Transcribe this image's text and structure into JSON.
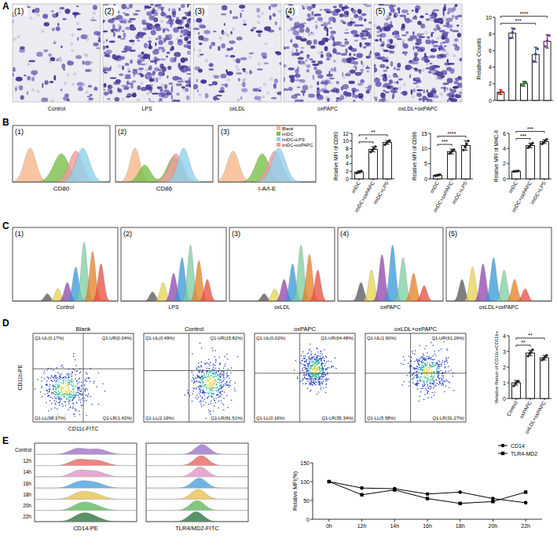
{
  "figure": {
    "panels": [
      {
        "letter": "A",
        "images": [
          {
            "index": "(1)",
            "caption": "Control"
          },
          {
            "index": "(2)",
            "caption": "LPS"
          },
          {
            "index": "(3)",
            "caption": "oxLDL"
          },
          {
            "index": "(4)",
            "caption": "oxPAPC"
          },
          {
            "index": "(5)",
            "caption": "oxLDL+oxPAPC"
          }
        ]
      },
      {
        "letter": "B",
        "histograms": [
          {
            "index": "(1)",
            "x_label": "CD80"
          },
          {
            "index": "(2)",
            "x_label": "CD86"
          },
          {
            "index": "(3)",
            "x_label": "I-A/I-E"
          }
        ],
        "legend": [
          {
            "name": "Blank",
            "color": "#f6b98a"
          },
          {
            "name": "imDC",
            "color": "#7cc04a"
          },
          {
            "name": "imDC+LPS",
            "color": "#8fd3ee"
          },
          {
            "name": "imDC+oxPAPC",
            "color": "#f29b9b"
          }
        ]
      },
      {
        "letter": "C",
        "histograms": [
          {
            "index": "(1)",
            "caption": "Control"
          },
          {
            "index": "(2)",
            "caption": "LPS"
          },
          {
            "index": "(3)",
            "caption": "oxLDL"
          },
          {
            "index": "(4)",
            "caption": "oxPAPC"
          },
          {
            "index": "(5)",
            "caption": "oxLDL+oxPAPC"
          }
        ]
      },
      {
        "letter": "D",
        "x_label": "CD11c-FITC",
        "y_label": "CD11b-PE",
        "plots": [
          {
            "title": "Blank",
            "quadrants": {
              "UL": "Q1-UL(0.17%)",
              "UR": "Q1-UR(0.04%)",
              "LL": "Q1-LL(98.37%)",
              "LR": "Q1-LR(1.42%)"
            }
          },
          {
            "title": "Control",
            "quadrants": {
              "UL": "Q1-UL(0.49%)",
              "UR": "Q1-UR(15.82%)",
              "LL": "Q1-LL(2.19%)",
              "LR": "Q1-LR(81.51%)"
            }
          },
          {
            "title": "oxPAPC",
            "quadrants": {
              "UL": "Q1-UL(0.02%)",
              "UR": "Q1-UR(64.48%)",
              "LL": "Q1-LL(0.16%)",
              "LR": "Q1-LR(35.34%)"
            }
          },
          {
            "title": "oxLDL+oxPAPC",
            "quadrants": {
              "UL": "Q1-UL(1.90%)",
              "UR": "Q1-UR(61.26%)",
              "LL": "Q1-LL(5.58%)",
              "LR": "Q1-LR(31.27%)"
            }
          }
        ]
      },
      {
        "letter": "E",
        "rows": [
          "Control",
          "12h",
          "14h",
          "16h",
          "18h",
          "20h",
          "22h"
        ],
        "histograms": [
          "CD14-PE",
          "TLR4/MD2-FITC"
        ]
      }
    ]
  },
  "chart_data": [
    {
      "type": "bar",
      "ylabel": "Relative Counts",
      "categories": [
        null,
        null,
        null,
        null,
        null
      ],
      "values": [
        1.0,
        8.1,
        2.0,
        5.5,
        7.1
      ],
      "errors": [
        0.3,
        0.6,
        0.3,
        0.9,
        0.8
      ],
      "points": [
        [
          0.8,
          1.2,
          1.0
        ],
        [
          7.5,
          8.2,
          8.6
        ],
        [
          1.8,
          2.1,
          2.2
        ],
        [
          4.7,
          5.6,
          6.2
        ],
        [
          6.5,
          7.2,
          7.8
        ]
      ],
      "colors": [
        "#e53935",
        "#5a3d8a",
        "#2e7d32",
        "#3949ab",
        "#8e24aa"
      ],
      "ylim": [
        0,
        10
      ],
      "yticks": [
        0,
        2,
        4,
        6,
        8,
        10
      ],
      "tick_labels": "y",
      "annotations": [
        {
          "text": "***",
          "between": [
            0,
            3
          ]
        },
        {
          "text": "****",
          "between": [
            0,
            4
          ]
        }
      ]
    },
    {
      "type": "bar",
      "ylabel": "Relative MFI of CD80",
      "categories": [
        "imDC",
        "imDC+oxPAPC",
        "imDC+LPS"
      ],
      "values": [
        1.8,
        7.8,
        9.6
      ],
      "errors": [
        0.3,
        0.7,
        0.5
      ],
      "points": [
        [
          1.5,
          1.7,
          1.9,
          2.1
        ],
        [
          7.1,
          7.6,
          8.0,
          8.5
        ],
        [
          9.0,
          9.5,
          9.8,
          10.1
        ]
      ],
      "color": "#222222",
      "ylim": [
        0,
        12
      ],
      "yticks": [
        0,
        2,
        4,
        6,
        8,
        10,
        12
      ],
      "annotations": [
        {
          "text": "*",
          "between": [
            0,
            1
          ]
        },
        {
          "text": "**",
          "between": [
            0,
            2
          ]
        }
      ]
    },
    {
      "type": "bar",
      "ylabel": "Relative MFI of CD86",
      "categories": [
        "imDC",
        "imDC+oxPAPC",
        "imDC+LPS"
      ],
      "values": [
        1.2,
        9.0,
        11.0
      ],
      "errors": [
        0.2,
        0.8,
        1.5
      ],
      "points": [
        [
          1.0,
          1.1,
          1.3,
          1.4
        ],
        [
          8.3,
          8.8,
          9.3,
          9.6
        ],
        [
          9.5,
          10.5,
          11.5,
          12.5
        ]
      ],
      "color": "#222222",
      "ylim": [
        0,
        15
      ],
      "yticks": [
        0,
        5,
        10,
        15
      ],
      "annotations": [
        {
          "text": "***",
          "between": [
            0,
            1
          ]
        },
        {
          "text": "****",
          "between": [
            0,
            2
          ]
        }
      ]
    },
    {
      "type": "bar",
      "ylabel": "Relative MFI of MHC-II",
      "categories": [
        "imDC",
        "imDC+oxPAPC",
        "imDC+LPS"
      ],
      "values": [
        1.0,
        4.4,
        4.9
      ],
      "errors": [
        0.05,
        0.3,
        0.25
      ],
      "points": [
        [
          0.95,
          1.0,
          1.02,
          1.05
        ],
        [
          4.1,
          4.3,
          4.5,
          4.7
        ],
        [
          4.6,
          4.8,
          5.0,
          5.2
        ]
      ],
      "color": "#222222",
      "ylim": [
        0,
        6
      ],
      "yticks": [
        0,
        2,
        4,
        6
      ],
      "annotations": [
        {
          "text": "***",
          "between": [
            0,
            1
          ]
        },
        {
          "text": "***",
          "between": [
            0,
            2
          ]
        }
      ]
    },
    {
      "type": "bar",
      "ylabel": "Relative Ration of CD11c+CD11b+",
      "categories": [
        "Control",
        "oxPAPC",
        "oxLDL+oxPAPC"
      ],
      "values": [
        1.0,
        2.9,
        2.6
      ],
      "errors": [
        0.15,
        0.18,
        0.15
      ],
      "points": [
        [
          0.8,
          0.95,
          1.05,
          1.1
        ],
        [
          2.7,
          2.85,
          2.95,
          3.1
        ],
        [
          2.45,
          2.55,
          2.65,
          2.75
        ]
      ],
      "color": "#222222",
      "ylim": [
        0,
        4
      ],
      "yticks": [
        0,
        1,
        2,
        3,
        4
      ],
      "annotations": [
        {
          "text": "**",
          "between": [
            0,
            1
          ]
        },
        {
          "text": "**",
          "between": [
            0,
            2
          ]
        }
      ]
    },
    {
      "type": "line",
      "ylabel": "Relative MFI(%)",
      "categories": [
        "0h",
        "12h",
        "14h",
        "16h",
        "18h",
        "20h",
        "22h"
      ],
      "series": [
        {
          "name": "CD14",
          "color": "#000000",
          "marker": "circle",
          "values": [
            100,
            83,
            81,
            67,
            72,
            55,
            44
          ]
        },
        {
          "name": "TLR4-MD2",
          "color": "#000000",
          "marker": "square",
          "values": [
            100,
            65,
            78,
            55,
            42,
            47,
            72
          ]
        }
      ],
      "ylim": [
        0,
        150
      ],
      "yticks": [
        0,
        50,
        100,
        150
      ],
      "legend": "top-right"
    }
  ]
}
